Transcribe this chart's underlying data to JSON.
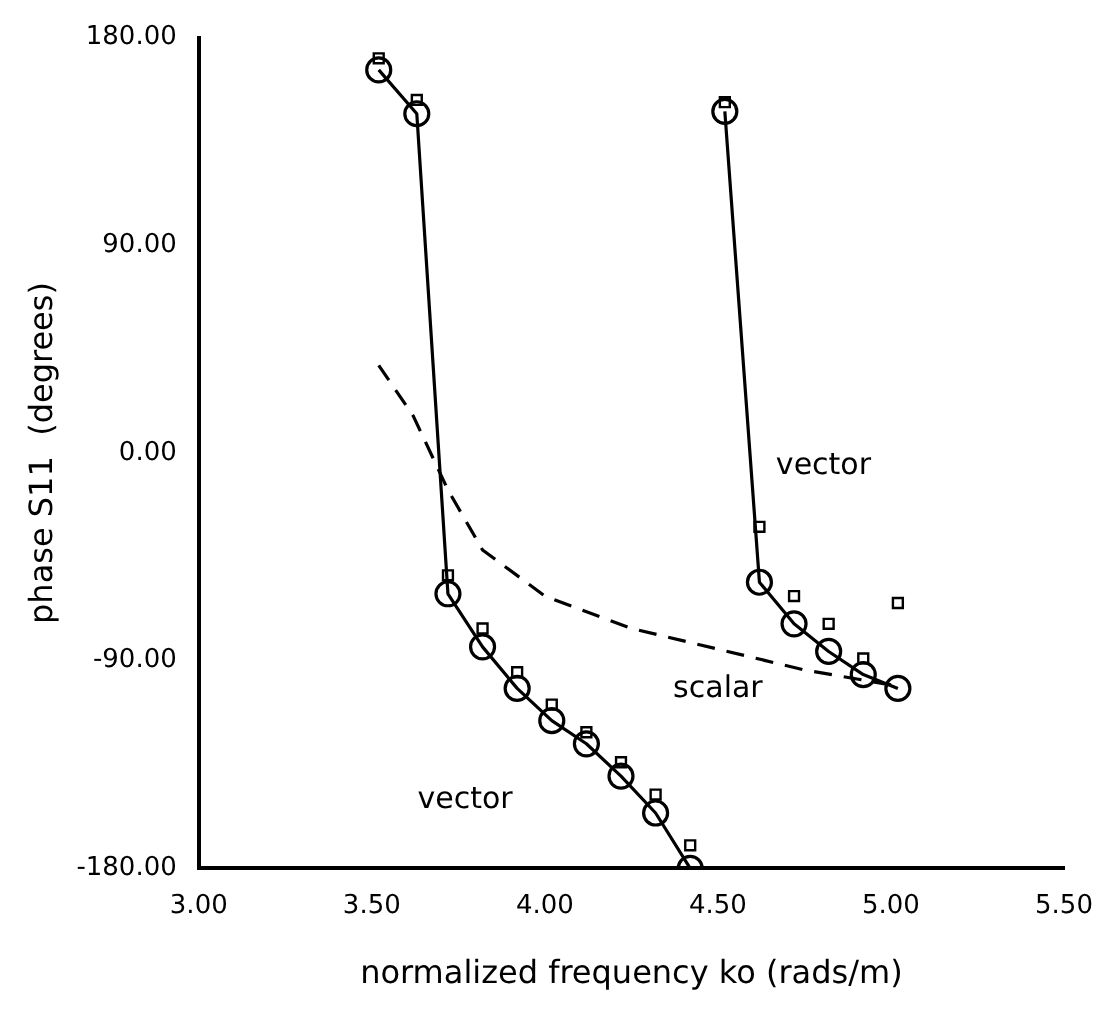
{
  "chart_data": {
    "type": "line",
    "xlabel": "normalized frequency ko (rads/m)",
    "ylabel": "phase S11  (degrees)",
    "xlim": [
      3.0,
      5.5
    ],
    "ylim": [
      -180,
      180
    ],
    "xticks": [
      {
        "value": 3.0,
        "label": "3.00"
      },
      {
        "value": 3.5,
        "label": "3.50"
      },
      {
        "value": 4.0,
        "label": "4.00"
      },
      {
        "value": 4.5,
        "label": "4.50"
      },
      {
        "value": 5.0,
        "label": "5.00"
      },
      {
        "value": 5.5,
        "label": "5.50"
      }
    ],
    "yticks": [
      {
        "value": -180,
        "label": "-180.00"
      },
      {
        "value": -90,
        "label": "-90.00"
      },
      {
        "value": 0,
        "label": "0.00"
      },
      {
        "value": 90,
        "label": "90.00"
      },
      {
        "value": 180,
        "label": "180.00"
      }
    ],
    "grid": false,
    "legend": false,
    "series": [
      {
        "name": "vector",
        "marker": "circle",
        "line_style": "solid",
        "color": "#000000",
        "x": [
          3.52,
          3.63,
          3.72,
          3.82,
          3.92,
          4.02,
          4.12,
          4.22,
          4.32,
          4.42
        ],
        "values": [
          166,
          147,
          -61,
          -84,
          -102,
          -116,
          -126,
          -140,
          -156,
          -180
        ]
      },
      {
        "name": "vector",
        "marker": "circle",
        "line_style": "solid",
        "color": "#000000",
        "x": [
          4.52,
          4.62,
          4.72,
          4.82,
          4.92,
          5.02
        ],
        "values": [
          148,
          -56,
          -74,
          -86,
          -96,
          -102
        ]
      },
      {
        "name": "scalar",
        "marker": "none",
        "line_style": "dashed",
        "color": "#000000",
        "x": [
          3.52,
          3.62,
          3.72,
          3.82,
          4.0,
          4.25,
          4.5,
          4.75,
          5.02
        ],
        "values": [
          38,
          16,
          -16,
          -42,
          -62,
          -76,
          -85,
          -94,
          -101
        ]
      },
      {
        "type": "scatter",
        "marker": "square",
        "color": "#000000",
        "x": [
          3.52,
          3.63,
          3.72,
          3.82,
          3.92,
          4.02,
          4.12,
          4.22,
          4.32,
          4.42,
          4.52,
          4.62,
          4.72,
          4.82,
          4.92,
          5.02
        ],
        "values": [
          171,
          153,
          -53,
          -76,
          -95,
          -109,
          -121,
          -134,
          -148,
          -170,
          152,
          -32,
          -62,
          -74,
          -89,
          -65
        ]
      }
    ]
  }
}
